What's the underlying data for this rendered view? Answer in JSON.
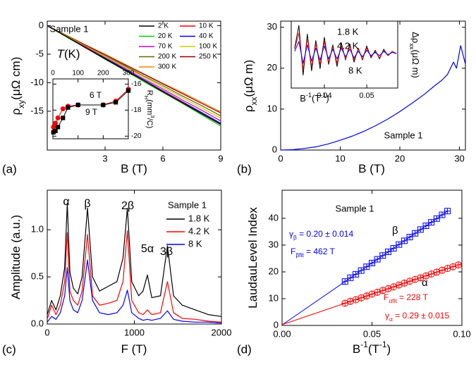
{
  "chart_data": [
    {
      "type": "line",
      "panel_label": "(a)",
      "annotations": [
        "Sample 1"
      ],
      "xlabel": [
        {
          "t": "B (T)"
        }
      ],
      "ylabel": [
        {
          "t": "ρ"
        },
        {
          "t": "xy",
          "sub": true
        },
        {
          "t": "(μΩ cm)"
        }
      ],
      "xlim": [
        0,
        9
      ],
      "ylim": [
        -21.8,
        0.8
      ],
      "xticks": [
        3,
        6,
        9
      ],
      "yticks": [
        0,
        -5,
        -10,
        -15
      ],
      "x": [
        0,
        1,
        2,
        3,
        4,
        5,
        6,
        7,
        8,
        9
      ],
      "series": [
        {
          "name": "2 K",
          "color": "#000000",
          "values": [
            0,
            -1.9,
            -3.9,
            -5.8,
            -7.7,
            -9.6,
            -11.6,
            -13.5,
            -15.4,
            -17.3
          ]
        },
        {
          "name": "10 K",
          "color": "#ff0000",
          "values": [
            0,
            -1.9,
            -3.8,
            -5.8,
            -7.7,
            -9.6,
            -11.5,
            -13.4,
            -15.4,
            -17.3
          ]
        },
        {
          "name": "20 K",
          "color": "#00cc00",
          "values": [
            0,
            -2.0,
            -3.9,
            -5.9,
            -7.8,
            -9.8,
            -11.7,
            -13.6,
            -15.6,
            -17.6
          ]
        },
        {
          "name": "40 K",
          "color": "#0000ff",
          "values": [
            0,
            -1.9,
            -3.8,
            -5.7,
            -7.6,
            -9.5,
            -11.4,
            -13.3,
            -15.2,
            -17.1
          ]
        },
        {
          "name": "70 K",
          "color": "#cc00cc",
          "values": [
            0,
            -1.9,
            -3.7,
            -5.6,
            -7.4,
            -9.3,
            -11.1,
            -13.0,
            -14.8,
            -16.7
          ]
        },
        {
          "name": "100 K",
          "color": "#cccc00",
          "values": [
            0,
            -1.8,
            -3.6,
            -5.4,
            -7.2,
            -9.0,
            -10.8,
            -12.6,
            -14.4,
            -16.2
          ]
        },
        {
          "name": "200 K",
          "color": "#666600",
          "values": [
            0,
            -1.8,
            -3.5,
            -5.3,
            -7.0,
            -8.8,
            -10.5,
            -12.3,
            -14.0,
            -15.8
          ]
        },
        {
          "name": "250 K",
          "color": "#990000",
          "values": [
            0,
            -1.7,
            -3.4,
            -5.1,
            -6.8,
            -8.5,
            -10.2,
            -11.9,
            -13.6,
            -15.3
          ]
        },
        {
          "name": "300 K",
          "color": "#ff8000",
          "values": [
            0,
            -1.7,
            -3.4,
            -5.0,
            -6.7,
            -8.4,
            -10.1,
            -11.7,
            -13.4,
            -15.1
          ]
        }
      ],
      "inset": {
        "type": "line",
        "xlabel": [
          {
            "t": "T",
            "italic": true
          },
          {
            "t": "(K)"
          }
        ],
        "ylabel": [
          {
            "t": "R"
          },
          {
            "t": "H",
            "sub": true
          },
          {
            "t": "(mm"
          },
          {
            "t": "3",
            "sup": true
          },
          {
            "t": "/C)"
          }
        ],
        "xlim": [
          0,
          300
        ],
        "ylim": [
          -20.2,
          -15.6
        ],
        "xticks": [
          0,
          100,
          200,
          300
        ],
        "yticks": [
          -20,
          -18,
          -16
        ],
        "x": [
          2,
          10,
          20,
          40,
          60,
          100,
          200,
          250,
          300
        ],
        "series": [
          {
            "name": "6 T",
            "color": "#ff0000",
            "marker": "circle",
            "values": [
              -19.3,
              -19.0,
              -18.6,
              -17.9,
              -17.7,
              -17.6,
              -17.6,
              -17.3,
              -16.4
            ]
          },
          {
            "name": "9 T",
            "color": "#000000",
            "marker": "square",
            "values": [
              -19.7,
              -19.6,
              -19.3,
              -18.6,
              -17.8,
              -17.6,
              -17.6,
              -17.4,
              -16.5
            ]
          }
        ]
      }
    },
    {
      "type": "line",
      "panel_label": "(b)",
      "annotations": [
        "Sample 1"
      ],
      "xlabel": [
        {
          "t": "B (T)"
        }
      ],
      "ylabel": [
        {
          "t": "ρ"
        },
        {
          "t": "xx",
          "sub": true
        },
        {
          "t": "(μΩ m)"
        }
      ],
      "xlim": [
        0,
        31
      ],
      "ylim": [
        0,
        31.5
      ],
      "xticks": [
        0,
        10,
        20,
        30
      ],
      "yticks": [
        0,
        10,
        20,
        30
      ],
      "x": [
        0,
        2,
        4,
        6,
        8,
        10,
        12,
        14,
        16,
        18,
        20,
        22,
        24,
        26,
        27,
        28,
        29,
        29.5,
        30.2,
        31
      ],
      "values": [
        0,
        0.1,
        0.4,
        0.8,
        1.5,
        2.4,
        3.4,
        4.6,
        6.0,
        7.6,
        9.4,
        11.4,
        13.5,
        15.9,
        17.0,
        18.5,
        21.5,
        20.0,
        25.5,
        21.0
      ],
      "color": "#0000ff",
      "inset": {
        "type": "line",
        "xlabel": [
          {
            "t": "B"
          },
          {
            "t": "-1",
            "sup": true
          },
          {
            "t": "(T"
          },
          {
            "t": "-1",
            "sup": true
          },
          {
            "t": ")"
          }
        ],
        "ylabel": [
          {
            "t": "Δρ"
          },
          {
            "t": "xx",
            "sub": true
          },
          {
            "t": "(μΩ m)"
          }
        ],
        "xlim": [
          0.0322,
          0.0573
        ],
        "ylim": [
          -3.2,
          3.0
        ],
        "xticks": [
          0.04,
          0.05
        ],
        "x": [
          0.033,
          0.034,
          0.035,
          0.036,
          0.037,
          0.038,
          0.039,
          0.04,
          0.041,
          0.042,
          0.043,
          0.044,
          0.045,
          0.046,
          0.047,
          0.048,
          0.049,
          0.05,
          0.051,
          0.052,
          0.053,
          0.054,
          0.055,
          0.056,
          0.057
        ],
        "series": [
          {
            "name": "1.8 K",
            "color": "#000000",
            "values": [
              0.5,
              2.6,
              -2.0,
              1.8,
              -1.6,
              1.2,
              -1.4,
              1.5,
              -1.0,
              0.8,
              -1.2,
              1.0,
              -0.6,
              0.9,
              -0.8,
              0.5,
              -0.6,
              0.7,
              -0.4,
              0.3,
              -0.5,
              0.4,
              -0.2,
              0.2,
              0
            ]
          },
          {
            "name": "4.2 K",
            "color": "#ff0000",
            "values": [
              0.4,
              1.9,
              -1.5,
              1.4,
              -1.2,
              0.9,
              -1.0,
              1.1,
              -0.8,
              0.6,
              -0.9,
              0.8,
              -0.5,
              0.7,
              -0.6,
              0.4,
              -0.5,
              0.5,
              -0.3,
              0.2,
              -0.4,
              0.3,
              -0.2,
              0.2,
              0
            ]
          },
          {
            "name": "8 K",
            "color": "#0000ff",
            "values": [
              0.2,
              1.1,
              -0.9,
              0.8,
              -0.7,
              0.5,
              -0.6,
              0.7,
              -0.5,
              0.4,
              -0.5,
              0.5,
              -0.3,
              0.4,
              -0.4,
              0.2,
              -0.3,
              0.3,
              -0.2,
              0.1,
              -0.2,
              0.2,
              -0.1,
              0.1,
              0
            ]
          }
        ]
      }
    },
    {
      "type": "line",
      "panel_label": "(c)",
      "legend_title": "Sample 1",
      "annotations": [
        "α",
        "β",
        "2β",
        "5α",
        "3β"
      ],
      "xlabel": [
        {
          "t": "F (T)"
        }
      ],
      "ylabel": [
        {
          "t": "Amplitude (a.u.)"
        }
      ],
      "xlim": [
        0,
        2000
      ],
      "ylim": [
        0,
        1.42
      ],
      "xticks": [
        0,
        1000,
        2000
      ],
      "yticks": [
        {
          "value": 0,
          "label": "0.0"
        },
        {
          "value": 0.5,
          "label": "0.5"
        },
        {
          "value": 1,
          "label": "1.0"
        }
      ],
      "x": [
        0,
        50,
        100,
        150,
        200,
        230,
        260,
        300,
        350,
        400,
        462,
        520,
        600,
        700,
        800,
        870,
        920,
        970,
        1050,
        1100,
        1150,
        1200,
        1300,
        1380,
        1450,
        1550,
        1700,
        1850,
        2000
      ],
      "series": [
        {
          "name": "1.8 K",
          "color": "#000000",
          "values": [
            0.1,
            0.25,
            0.15,
            0.3,
            0.6,
            1.28,
            0.55,
            0.38,
            0.32,
            0.5,
            1.23,
            0.5,
            0.35,
            0.4,
            0.45,
            0.7,
            1.23,
            0.45,
            0.3,
            0.35,
            0.52,
            0.28,
            0.3,
            0.83,
            0.3,
            0.2,
            0.15,
            0.1,
            0.08
          ]
        },
        {
          "name": "4.2 K",
          "color": "#ff0000",
          "values": [
            0.05,
            0.2,
            0.1,
            0.2,
            0.45,
            0.97,
            0.35,
            0.25,
            0.2,
            0.35,
            0.95,
            0.3,
            0.2,
            0.22,
            0.25,
            0.45,
            0.99,
            0.25,
            0.12,
            0.1,
            0.15,
            0.1,
            0.12,
            0.45,
            0.12,
            0.06,
            0.05,
            0.03,
            0.02
          ]
        },
        {
          "name": "8 K",
          "color": "#0000ff",
          "values": [
            0.02,
            0.08,
            0.05,
            0.12,
            0.3,
            0.6,
            0.25,
            0.15,
            0.12,
            0.25,
            0.68,
            0.25,
            0.12,
            0.1,
            0.12,
            0.2,
            0.36,
            0.12,
            0.06,
            0.04,
            0.05,
            0.04,
            0.06,
            0.14,
            0.05,
            0.03,
            0.02,
            0.02,
            0.01
          ]
        }
      ]
    },
    {
      "type": "scatter",
      "panel_label": "(d)",
      "annotations": [
        "Sample 1"
      ],
      "xlabel": [
        {
          "t": "B"
        },
        {
          "t": "-1",
          "sup": true
        },
        {
          "t": "(T"
        },
        {
          "t": "-1",
          "sup": true
        },
        {
          "t": ")"
        }
      ],
      "ylabel": [
        {
          "t": "LaudauLevel Index"
        }
      ],
      "xlim": [
        0,
        0.1
      ],
      "ylim": [
        0,
        50.5
      ],
      "xticks": [
        {
          "value": 0,
          "label": "0.00"
        },
        {
          "value": 0.05,
          "label": "0.05"
        },
        {
          "value": 0.1,
          "label": "0.10"
        }
      ],
      "yticks": [
        0,
        10,
        20,
        30,
        40
      ],
      "formulas": [
        [
          {
            "t": "γ"
          },
          {
            "t": "β",
            "sub": true
          },
          {
            "t": " = 0.20 ± 0.014"
          }
        ],
        [
          {
            "t": "F"
          },
          {
            "t": "βfit",
            "sub": true
          },
          {
            "t": " = 462 T"
          }
        ],
        [
          {
            "t": "F"
          },
          {
            "t": "αfit",
            "sub": true
          },
          {
            "t": " = 228 T"
          }
        ],
        [
          {
            "t": "γ"
          },
          {
            "t": "α",
            "sub": true
          },
          {
            "t": " = 0.29 ± 0.015"
          }
        ]
      ],
      "formula_colors": [
        "#0000ff",
        "#0000ff",
        "#ff0000",
        "#ff0000"
      ],
      "series": [
        {
          "name": "β",
          "color": "#0000ff",
          "marker": "square",
          "x": [
            0.035,
            0.038,
            0.041,
            0.044,
            0.047,
            0.05,
            0.053,
            0.056,
            0.059,
            0.062,
            0.065,
            0.068,
            0.071,
            0.074,
            0.077,
            0.08,
            0.083,
            0.086,
            0.089,
            0.092
          ],
          "values": [
            16.4,
            17.8,
            19.1,
            20.5,
            21.9,
            23.3,
            24.7,
            26.1,
            27.5,
            28.8,
            30.2,
            31.6,
            33.0,
            34.4,
            35.8,
            37.2,
            38.5,
            39.9,
            41.3,
            42.7
          ],
          "fit": {
            "x": [
              0,
              0.092
            ],
            "values": [
              0.2,
              42.7
            ]
          }
        },
        {
          "name": "α",
          "color": "#ff0000",
          "marker": "circle",
          "x": [
            0.035,
            0.038,
            0.041,
            0.044,
            0.047,
            0.05,
            0.053,
            0.056,
            0.059,
            0.062,
            0.065,
            0.068,
            0.071,
            0.074,
            0.077,
            0.08,
            0.083,
            0.086,
            0.089,
            0.092,
            0.095,
            0.098
          ],
          "values": [
            8.3,
            9.0,
            9.6,
            10.3,
            11.0,
            11.7,
            12.4,
            13.1,
            13.7,
            14.4,
            15.1,
            15.8,
            16.5,
            17.2,
            17.8,
            18.5,
            19.2,
            19.9,
            20.6,
            21.3,
            21.9,
            22.6
          ],
          "fit": {
            "x": [
              0,
              0.1
            ],
            "values": [
              0.29,
              23.1
            ]
          }
        }
      ]
    }
  ]
}
